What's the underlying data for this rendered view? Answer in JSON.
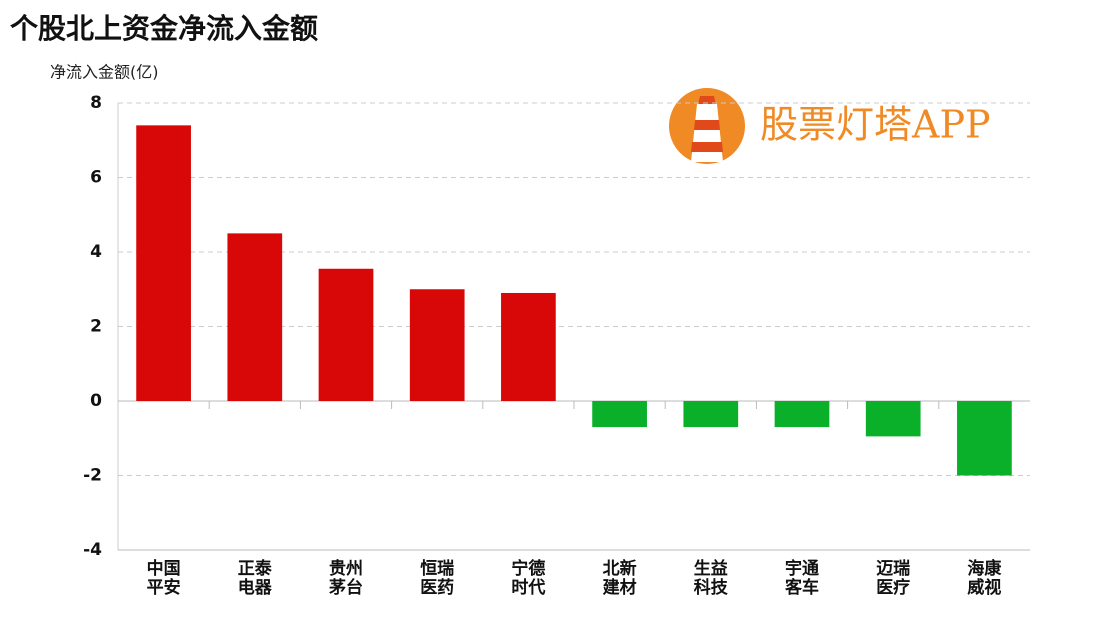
{
  "chart_data": {
    "type": "bar",
    "title": "个股北上资金净流入金额",
    "y_label": "净流入金额(亿)",
    "watermark": "股票灯塔APP",
    "categories": [
      "中国\n平安",
      "正泰\n电器",
      "贵州\n茅台",
      "恒瑞\n医药",
      "宁德\n时代",
      "北新\n建材",
      "生益\n科技",
      "宇通\n客车",
      "迈瑞\n医疗",
      "海康\n威视"
    ],
    "values": [
      7.4,
      4.5,
      3.55,
      3.0,
      2.9,
      -0.7,
      -0.7,
      -0.7,
      -0.95,
      -2.0
    ],
    "positive_color": "#d90808",
    "negative_color": "#0aaf2a",
    "ylim": [
      -4,
      8
    ],
    "yticks": [
      -4,
      -2,
      0,
      2,
      4,
      6,
      8
    ],
    "grid": true
  }
}
